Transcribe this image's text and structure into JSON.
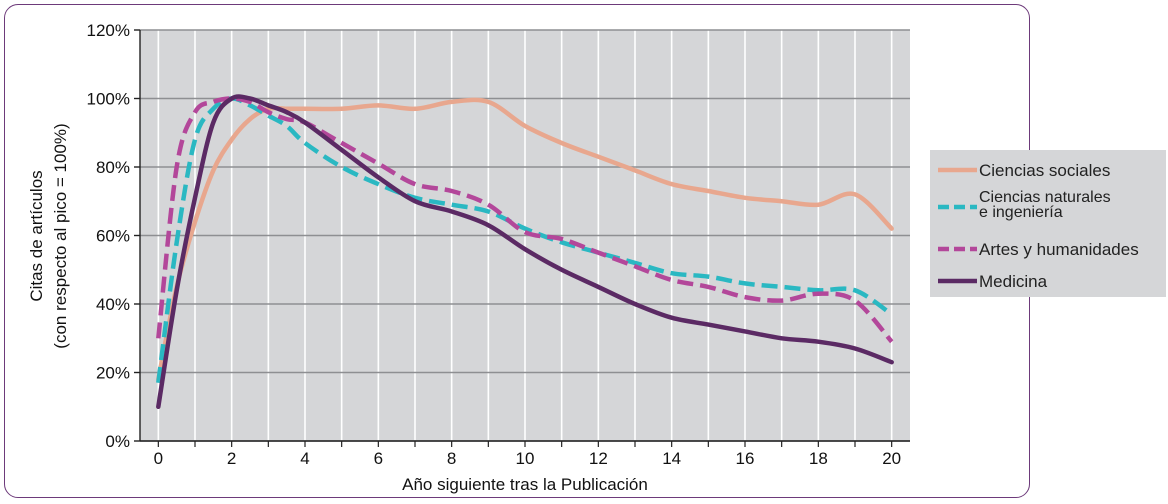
{
  "chart_data": {
    "type": "line",
    "xlabel": "Año siguiente tras la Publicación",
    "ylabel_line1": "Citas de artículos",
    "ylabel_line2": "(con respecto al pico = 100%)",
    "xlim": [
      -0.5,
      20.5
    ],
    "ylim": [
      0,
      120
    ],
    "xticks": [
      0,
      2,
      4,
      6,
      8,
      10,
      12,
      14,
      16,
      18,
      20
    ],
    "yticks": [
      0,
      20,
      40,
      60,
      80,
      100,
      120
    ],
    "ytick_labels": [
      "0%",
      "20%",
      "40%",
      "60%",
      "80%",
      "100%",
      "120%"
    ],
    "grid": true,
    "legend_position": "right",
    "series": [
      {
        "name": "Ciencias sociales",
        "color": "#e8a78e",
        "dash": "solid",
        "x": [
          0,
          0.5,
          1,
          1.5,
          2,
          2.5,
          3,
          3.5,
          4,
          5,
          6,
          7,
          8,
          9,
          10,
          11,
          12,
          13,
          14,
          15,
          16,
          17,
          18,
          19,
          20
        ],
        "values": [
          18,
          45,
          64,
          79,
          88,
          94,
          97,
          97,
          97,
          97,
          98,
          97,
          99,
          99,
          92,
          87,
          83,
          79,
          75,
          73,
          71,
          70,
          69,
          72,
          62
        ]
      },
      {
        "name": "Ciencias naturales e ingeniería",
        "label_lines": [
          "Ciencias naturales",
          "e ingeniería"
        ],
        "color": "#2ab8c2",
        "dash": "dashed",
        "x": [
          0,
          0.5,
          1,
          1.5,
          2,
          2.5,
          3,
          3.5,
          4,
          5,
          6,
          7,
          8,
          9,
          10,
          11,
          12,
          13,
          14,
          15,
          16,
          17,
          18,
          19,
          20
        ],
        "values": [
          17,
          58,
          88,
          97,
          100,
          98,
          95,
          92,
          87,
          80,
          75,
          71,
          69,
          67,
          62,
          58,
          55,
          52,
          49,
          48,
          46,
          45,
          44,
          44,
          37
        ]
      },
      {
        "name": "Artes y humanidades",
        "color": "#b3479a",
        "dash": "dashed",
        "x": [
          0,
          0.5,
          1,
          1.5,
          2,
          2.5,
          3,
          3.5,
          4,
          5,
          6,
          7,
          8,
          9,
          10,
          11,
          12,
          13,
          14,
          15,
          16,
          17,
          18,
          19,
          20
        ],
        "values": [
          30,
          80,
          96,
          99,
          100,
          99,
          96,
          94,
          93,
          87,
          81,
          75,
          73,
          69,
          61,
          59,
          55,
          51,
          47,
          45,
          42,
          41,
          43,
          41,
          29
        ]
      },
      {
        "name": "Medicina",
        "color": "#5b2a64",
        "dash": "solid",
        "x": [
          0,
          0.5,
          1,
          1.5,
          2,
          2.5,
          3,
          3.5,
          4,
          5,
          6,
          7,
          8,
          9,
          10,
          11,
          12,
          13,
          14,
          15,
          16,
          17,
          18,
          19,
          20
        ],
        "values": [
          10,
          44,
          71,
          93,
          100,
          100,
          98,
          96,
          93,
          85,
          77,
          70,
          67,
          63,
          56,
          50,
          45,
          40,
          36,
          34,
          32,
          30,
          29,
          27,
          23
        ]
      }
    ]
  }
}
